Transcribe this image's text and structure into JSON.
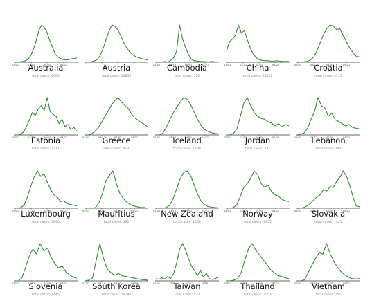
{
  "chart_data": [
    {
      "type": "line",
      "country": "Australia",
      "total_label": "total cases:",
      "total_cases": "6660",
      "x_ticks": [
        "02/01",
        "03/12",
        "04/05",
        "04/21"
      ],
      "values": [
        0,
        0,
        0.01,
        0.02,
        0.04,
        0.08,
        0.18,
        0.35,
        0.58,
        0.86,
        1.0,
        0.93,
        0.8,
        0.58,
        0.4,
        0.22,
        0.14,
        0.1,
        0.07,
        0.06,
        0.07,
        0.09,
        0.1,
        0.12
      ]
    },
    {
      "type": "line",
      "country": "Austria",
      "total_label": "total cases:",
      "total_cases": "15850",
      "x_ticks": [
        "",
        "",
        "",
        ""
      ],
      "values": [
        0,
        0,
        0.01,
        0.03,
        0.07,
        0.18,
        0.36,
        0.6,
        0.83,
        1.0,
        0.96,
        0.87,
        0.7,
        0.52,
        0.38,
        0.28,
        0.2,
        0.15,
        0.12,
        0.1,
        0.08,
        0.06
      ]
    },
    {
      "type": "line",
      "country": "Cambodia",
      "total_label": "total cases:",
      "total_cases": "122",
      "x_ticks": [
        "02/01",
        "03/12",
        "04/01",
        "04/21"
      ],
      "values": [
        0,
        0,
        0,
        0.02,
        0,
        0.05,
        0.12,
        0.3,
        1.0,
        0.62,
        0.4,
        0.2,
        0.08,
        0.04,
        0.03,
        0.02,
        0.02,
        0.01,
        0.01,
        0.02,
        0.01,
        0.0
      ]
    },
    {
      "type": "line",
      "country": "China",
      "total_label": "total cases:",
      "total_cases": "83422",
      "x_ticks": [
        "02/01",
        "03/21",
        "04/01",
        "04/21"
      ],
      "values": [
        0.3,
        0.55,
        0.62,
        0.72,
        1.0,
        0.78,
        0.85,
        0.6,
        0.38,
        0.22,
        0.12,
        0.07,
        0.05,
        0.04,
        0.04,
        0.03,
        0.03,
        0.04,
        0.03,
        0.02,
        0.02,
        0.02
      ]
    },
    {
      "type": "line",
      "country": "Croatia",
      "total_label": "total cases:",
      "total_cases": "2112",
      "x_ticks": [
        "02/01",
        "03/12",
        "04/01",
        "04/21"
      ],
      "values": [
        0,
        0,
        0.01,
        0.02,
        0.06,
        0.14,
        0.3,
        0.52,
        0.74,
        0.9,
        1.0,
        0.97,
        0.88,
        0.9,
        0.72,
        0.55,
        0.38,
        0.26,
        0.16,
        0.14
      ]
    },
    {
      "type": "line",
      "country": "Estonia",
      "total_label": "total cases:",
      "total_cases": "1711",
      "x_ticks": [
        "02/01",
        "03/13",
        "04/01",
        "04/21"
      ],
      "values": [
        0,
        0,
        0.01,
        0.08,
        0.22,
        0.4,
        0.6,
        0.52,
        0.7,
        0.78,
        0.66,
        1.0,
        0.62,
        0.55,
        0.5,
        0.3,
        0.42,
        0.22,
        0.28,
        0.14,
        0.2,
        0.1
      ]
    },
    {
      "type": "line",
      "country": "Greece",
      "total_label": "total cases:",
      "total_cases": "2640",
      "x_ticks": [
        "02/01",
        "03/12",
        "04/05",
        "04/21"
      ],
      "values": [
        0,
        0,
        0.03,
        0.1,
        0.2,
        0.34,
        0.5,
        0.64,
        0.8,
        0.92,
        1.0,
        0.88,
        0.8,
        0.72,
        0.58,
        0.46,
        0.4,
        0.34,
        0.28,
        0.22
      ]
    },
    {
      "type": "line",
      "country": "Iceland",
      "total_label": "total cases:",
      "total_cases": "1799",
      "x_ticks": [
        "02/01",
        "03/12",
        "04/01",
        "04/21"
      ],
      "values": [
        0,
        0,
        0.05,
        0.2,
        0.4,
        0.58,
        0.74,
        0.87,
        1.0,
        0.96,
        0.82,
        0.62,
        0.42,
        0.26,
        0.15,
        0.1,
        0.06,
        0.04,
        0.03
      ]
    },
    {
      "type": "line",
      "country": "Jordan",
      "total_label": "total cases:",
      "total_cases": "471",
      "x_ticks": [
        "02/01",
        "03/12",
        "04/02",
        "04/21"
      ],
      "values": [
        0,
        0,
        0.04,
        0.16,
        0.5,
        0.85,
        1.0,
        0.78,
        0.6,
        0.5,
        0.44,
        0.42,
        0.35,
        0.32,
        0.24,
        0.3,
        0.22,
        0.28,
        0.24
      ]
    },
    {
      "type": "line",
      "country": "Lebanon",
      "total_label": "total cases:",
      "total_cases": "740",
      "x_ticks": [
        "02/01",
        "03/13",
        "04/05",
        "04/21"
      ],
      "values": [
        0,
        0.02,
        0.05,
        0.18,
        0.42,
        0.62,
        1.0,
        0.78,
        0.72,
        0.5,
        0.58,
        0.4,
        0.36,
        0.3,
        0.24,
        0.28,
        0.2,
        0.18,
        0.16
      ]
    },
    {
      "type": "line",
      "country": "Luxembourg",
      "total_label": "total cases:",
      "total_cases": "3840",
      "x_ticks": [
        "02/01",
        "03/12",
        "04/05",
        "04/21"
      ],
      "values": [
        0,
        0,
        0.02,
        0.1,
        0.32,
        0.6,
        0.84,
        1.0,
        0.85,
        0.92,
        0.7,
        0.5,
        0.36,
        0.3,
        0.18,
        0.2,
        0.12,
        0.1,
        0.08,
        0.06
      ]
    },
    {
      "type": "line",
      "country": "Mauritius",
      "total_label": "total cases:",
      "total_cases": "332",
      "x_ticks": [
        "02/01",
        "03/12",
        "04/05",
        "04/21"
      ],
      "values": [
        0,
        0,
        0,
        0.02,
        0.15,
        0.4,
        0.74,
        0.88,
        1.0,
        0.66,
        0.4,
        0.26,
        0.16,
        0.1,
        0.06,
        0.04,
        0.02,
        0.02,
        0.0
      ]
    },
    {
      "type": "line",
      "country": "New Zealand",
      "total_label": "total cases:",
      "total_cases": "1466",
      "x_ticks": [
        "02/01",
        "03/12",
        "04/01",
        "04/21"
      ],
      "values": [
        0,
        0,
        0,
        0.02,
        0.08,
        0.26,
        0.52,
        0.78,
        0.95,
        1.0,
        0.88,
        0.64,
        0.38,
        0.2,
        0.1,
        0.05,
        0.03,
        0.02,
        0.01
      ]
    },
    {
      "type": "line",
      "country": "Norway",
      "total_label": "total cases:",
      "total_cases": "7955",
      "x_ticks": [
        "02/01",
        "03/12",
        "04/05",
        "04/21"
      ],
      "values": [
        0,
        0,
        0.02,
        0.1,
        0.32,
        0.56,
        0.66,
        0.8,
        1.0,
        0.9,
        0.66,
        0.56,
        0.62,
        0.45,
        0.36,
        0.32,
        0.24,
        0.2,
        0.18
      ]
    },
    {
      "type": "line",
      "country": "Slovakia",
      "total_label": "total cases:",
      "total_cases": "1421",
      "x_ticks": [
        "02/01",
        "03/12",
        "04/05",
        "04/21"
      ],
      "values": [
        0,
        0,
        0.02,
        0.06,
        0.12,
        0.22,
        0.3,
        0.36,
        0.5,
        0.46,
        0.58,
        0.55,
        0.72,
        0.82,
        1.0,
        0.86,
        0.62,
        0.3,
        0.06,
        0.04
      ]
    },
    {
      "type": "line",
      "country": "Slovenia",
      "total_label": "total cases:",
      "total_cases": "1445",
      "x_ticks": [
        "02/01",
        "03/13",
        "04/05",
        "04/21"
      ],
      "values": [
        0,
        0,
        0.08,
        0.36,
        0.66,
        0.85,
        0.72,
        1.0,
        0.8,
        0.88,
        0.62,
        0.46,
        0.34,
        0.4,
        0.24,
        0.16,
        0.1,
        0.07
      ]
    },
    {
      "type": "line",
      "country": "South Korea",
      "total_label": "total cases:",
      "total_cases": "10794",
      "x_ticks": [
        "02/01",
        "03/16",
        "03/22",
        "04/18"
      ],
      "values": [
        0,
        0.02,
        0.08,
        0.55,
        1.0,
        0.6,
        0.32,
        0.22,
        0.15,
        0.2,
        0.14,
        0.12,
        0.1,
        0.08,
        0.06,
        0.04,
        0.03,
        0.02
      ]
    },
    {
      "type": "line",
      "country": "Taiwan",
      "total_label": "total cases:",
      "total_cases": "420",
      "x_ticks": [
        "02/01",
        "3/7",
        "3/27",
        "4/16"
      ],
      "values": [
        0.06,
        0.04,
        0.08,
        0.05,
        0.12,
        0.06,
        0.2,
        0.48,
        0.84,
        1.0,
        0.82,
        0.6,
        0.4,
        0.28,
        0.14,
        0.28,
        0.1,
        0.2,
        0.06,
        0.04,
        0.06,
        0.1
      ]
    },
    {
      "type": "line",
      "country": "Thailand",
      "total_label": "total cases:",
      "total_cases": "2953",
      "x_ticks": [
        "02/01",
        "03/12",
        "04/05",
        "04/21"
      ],
      "values": [
        0,
        0,
        0.02,
        0.06,
        0.22,
        0.56,
        0.86,
        1.0,
        0.82,
        0.7,
        0.56,
        0.44,
        0.3,
        0.22,
        0.14,
        0.12,
        0.08,
        0.06
      ]
    },
    {
      "type": "line",
      "country": "Vietnam",
      "total_label": "total cases:",
      "total_cases": "255",
      "x_ticks": [
        "02/01",
        "03/12",
        "04/05",
        "04/21"
      ],
      "values": [
        0,
        0,
        0.03,
        0.22,
        0.42,
        0.6,
        0.76,
        0.72,
        1.0,
        0.72,
        0.52,
        0.36,
        0.24,
        0.16,
        0.1,
        0.06,
        0.05,
        0.06
      ]
    }
  ],
  "style": {
    "line_color": "#2b8a2b",
    "axis_color": "#333333",
    "caption_color": "#888888"
  }
}
